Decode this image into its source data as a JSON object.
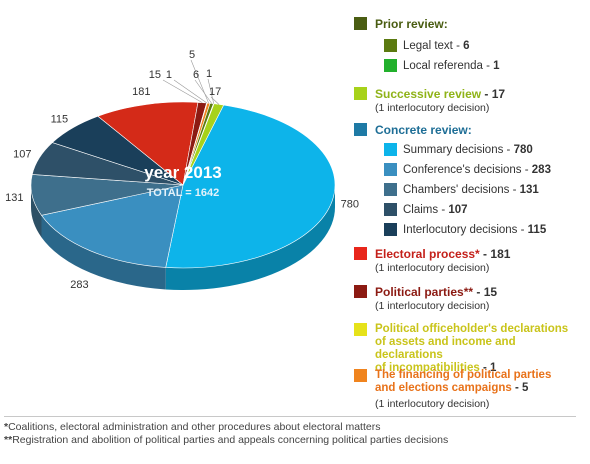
{
  "chart_data": {
    "type": "pie",
    "center_title": "year 2013",
    "center_total": "TOTAL = 1642",
    "slices": [
      {
        "name": "Summary decisions",
        "value": 780,
        "label": "780",
        "color": "#0db4ea"
      },
      {
        "name": "Conference's decisions",
        "value": 283,
        "label": "283",
        "color": "#3a8fc0"
      },
      {
        "name": "Chambers' decisions",
        "value": 131,
        "label": "131",
        "color": "#3e6f8c"
      },
      {
        "name": "Claims",
        "value": 107,
        "label": "107",
        "color": "#2e5068"
      },
      {
        "name": "Interlocutory decisions",
        "value": 115,
        "label": "115",
        "color": "#1a3f5a"
      },
      {
        "name": "Electoral process",
        "value": 181,
        "label": "181",
        "color": "#d42a18"
      },
      {
        "name": "Political parties",
        "value": 15,
        "label": "15",
        "color": "#8c1a12"
      },
      {
        "name": "Political officeholder's declarations",
        "value": 1,
        "label": "1",
        "color": "#d8d520"
      },
      {
        "name": "The financing of political parties",
        "value": 5,
        "label": "5",
        "color": "#f0841e"
      },
      {
        "name": "Legal text",
        "value": 6,
        "label": "6",
        "color": "#5b7a10"
      },
      {
        "name": "Local referenda",
        "value": 1,
        "label": "1",
        "color": "#22b02c"
      },
      {
        "name": "Successive review",
        "value": 17,
        "label": "17",
        "color": "#a7d21a"
      }
    ]
  },
  "legend": {
    "prior": {
      "title": "Prior review:",
      "color": "#4a5d12",
      "title_color": "#4a5d12",
      "items": [
        {
          "label": "Legal text",
          "count": "6",
          "color": "#5b7a10"
        },
        {
          "label": "Local referenda",
          "count": "1",
          "color": "#22b02c"
        }
      ]
    },
    "successive": {
      "title": "Successive review",
      "count": "17",
      "note": "(1 interlocutory decision)",
      "color": "#a7d21a",
      "title_color": "#8fb318"
    },
    "concrete": {
      "title": "Concrete review:",
      "color": "#1e7aa5",
      "title_color": "#1e6e96",
      "items": [
        {
          "label": "Summary decisions",
          "count": "780",
          "color": "#0db4ea"
        },
        {
          "label": "Conference's decisions",
          "count": "283",
          "color": "#3a8fc0"
        },
        {
          "label": "Chambers' decisions",
          "count": "131",
          "color": "#3e6f8c"
        },
        {
          "label": "Claims",
          "count": "107",
          "color": "#2e5068"
        },
        {
          "label": "Interlocutory decisions",
          "count": "115",
          "color": "#1a3f5a"
        }
      ]
    },
    "electoral": {
      "title": "Electoral process*",
      "count": "181",
      "note": "(1 interlocutory decision)",
      "color": "#e8261b",
      "title_color": "#c4201a"
    },
    "parties": {
      "title": "Political parties**",
      "count": "15",
      "note": "(1 interlocutory decision)",
      "color": "#8c1a12",
      "title_color": "#8c1a12"
    },
    "officeholder": {
      "title_lines": [
        "Political officeholder's declarations",
        "of assets and income and declarations",
        "of incompatibilities"
      ],
      "count": "1",
      "color": "#e6e21a",
      "title_color": "#c9c41a"
    },
    "financing": {
      "title_lines": [
        "The financing of political parties",
        "and elections campaigns"
      ],
      "count": "5",
      "note": "(1 interlocutory decision)",
      "color": "#f0841e",
      "title_color": "#e8721a"
    }
  },
  "footnotes": {
    "f1_mark": "*",
    "f1_text": "Coalitions, electoral administration and other procedures about electoral matters",
    "f2_mark": "**",
    "f2_text": "Registration and abolition of political parties and appeals concerning political parties decisions"
  }
}
